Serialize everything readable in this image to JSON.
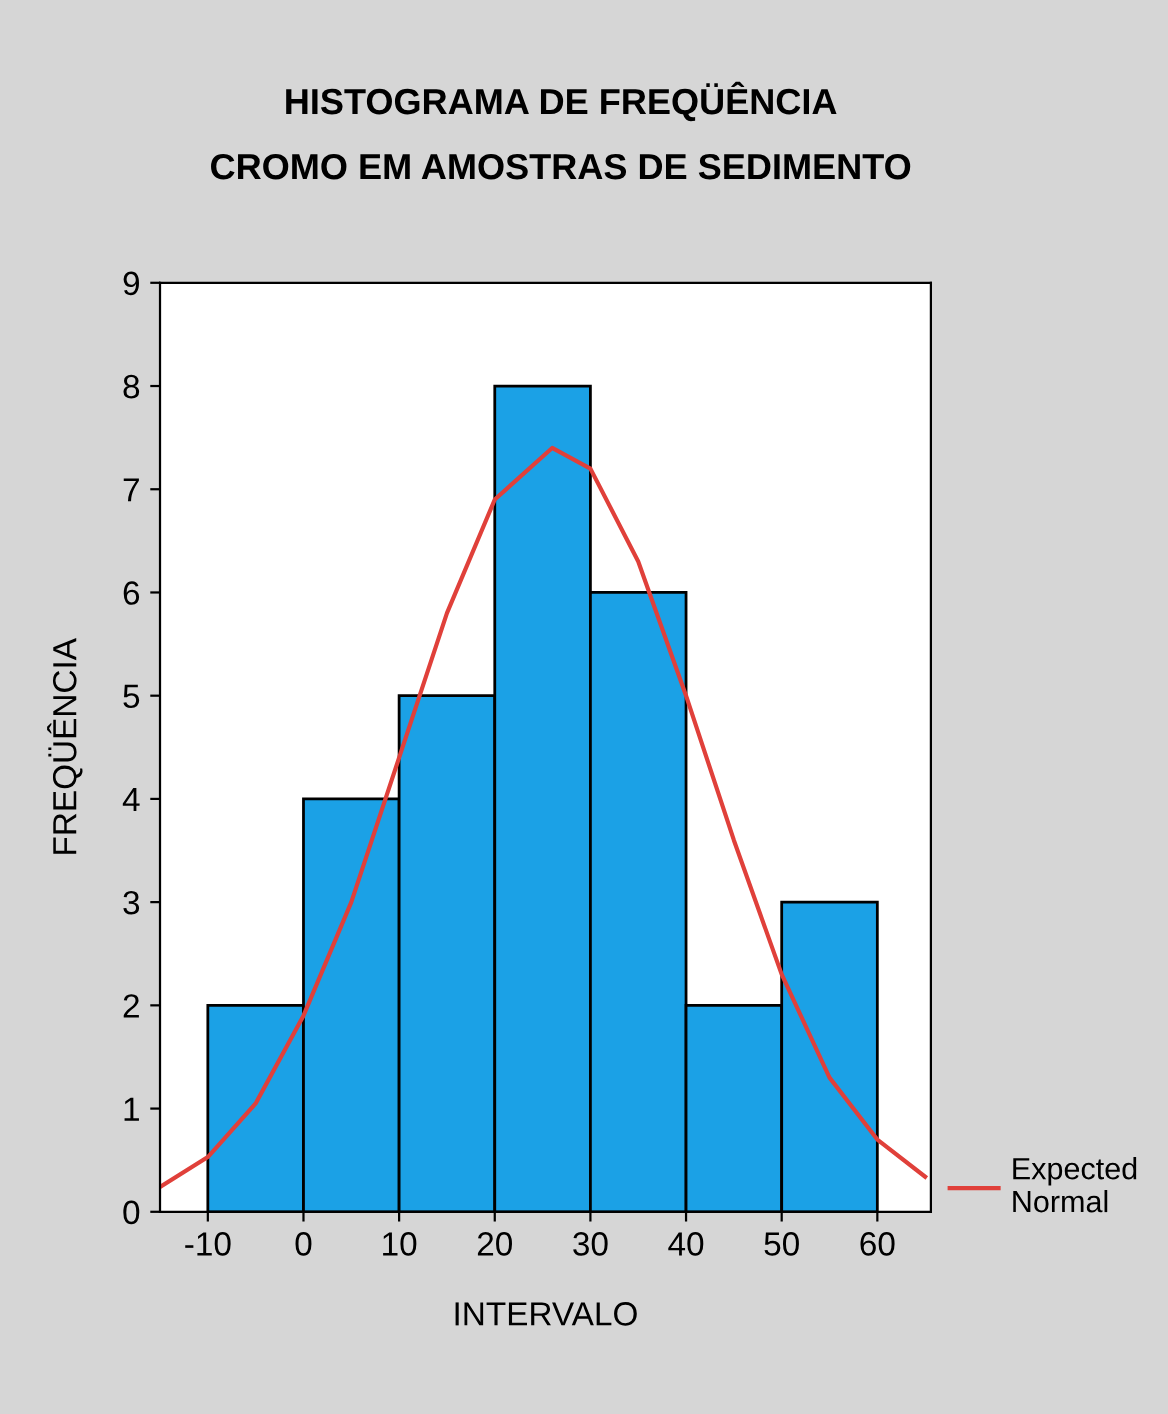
{
  "chart_data": {
    "type": "histogram",
    "title": "HISTOGRAMA DE FREQÜÊNCIA\nCROMO EM AMOSTRAS DE SEDIMENTO",
    "xlabel": "INTERVALO",
    "ylabel": "FREQÜÊNCIA",
    "bins": [
      -10,
      0,
      10,
      20,
      30,
      40,
      50,
      60
    ],
    "values": [
      2,
      4,
      5,
      8,
      6,
      2,
      3
    ],
    "color": "#1ba1e6",
    "series": [
      {
        "type": "line",
        "name": "Expected\nNormal",
        "color": "#e0403a",
        "x": [
          -15,
          -10,
          -5,
          0,
          5,
          10,
          15,
          20,
          26,
          30,
          35,
          40,
          45,
          50,
          55,
          60,
          65
        ],
        "values": [
          0.24,
          0.53,
          1.05,
          1.9,
          3.0,
          4.4,
          5.8,
          6.9,
          7.4,
          7.2,
          6.3,
          5.0,
          3.6,
          2.3,
          1.3,
          0.7,
          0.34
        ]
      }
    ],
    "xlim": [
      -15,
      65.6
    ],
    "ylim": [
      0,
      9
    ],
    "xticks": [
      -10,
      0,
      10,
      20,
      30,
      40,
      50,
      60
    ],
    "yticks": [
      0,
      1,
      2,
      3,
      4,
      5,
      6,
      7,
      8,
      9
    ],
    "grid": false,
    "legend": "right"
  }
}
